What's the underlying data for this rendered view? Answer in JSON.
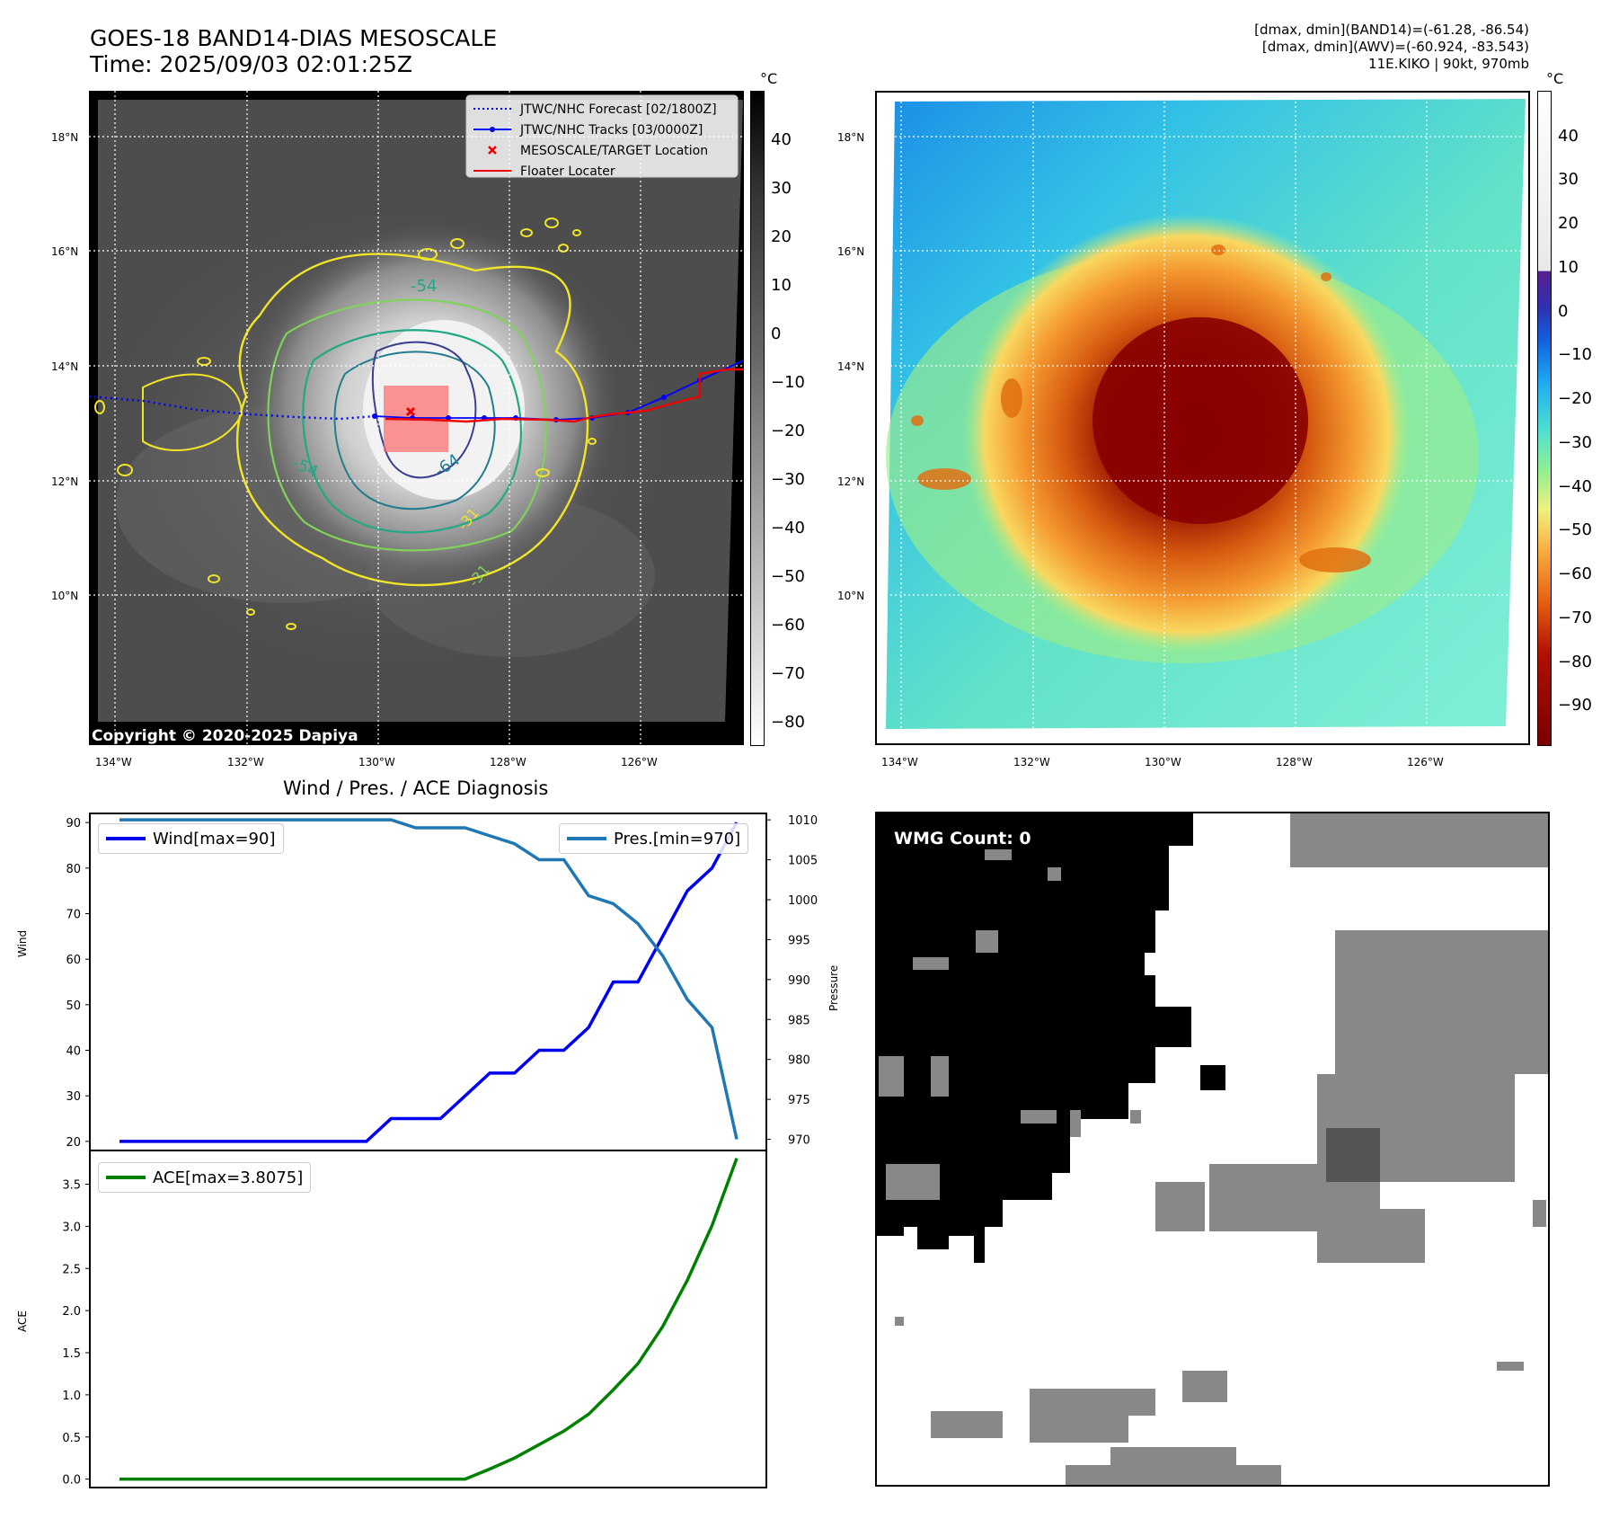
{
  "header": {
    "title_line1": "GOES-18 BAND14-DIAS MESOSCALE",
    "title_line2": "Time: 2025/09/03 02:01:25Z",
    "info_line1": "[dmax, dmin](BAND14)=(-61.28, -86.54)",
    "info_line2": "[dmax, dmin](AWV)=(-60.924, -83.543)",
    "info_line3": "11E.KIKO | 90kt, 970mb"
  },
  "map": {
    "lat_labels": [
      "18°N",
      "16°N",
      "14°N",
      "12°N",
      "10°N"
    ],
    "lon_labels": [
      "134°W",
      "132°W",
      "130°W",
      "128°W",
      "126°W"
    ],
    "copyright": "Copyright © 2020-2025 Dapiya",
    "legend": {
      "forecast": "JTWC/NHC Forecast [02/1800Z]",
      "tracks": "JTWC/NHC Tracks [03/0000Z]",
      "target": "MESOSCALE/TARGET Location",
      "floater": "Floater Locater"
    },
    "contour_labels": [
      "-54",
      "-54",
      "-64",
      "-31",
      "-31"
    ],
    "colorbar_unit": "°C",
    "colorbar_ticks": [
      "40",
      "30",
      "20",
      "10",
      "0",
      "−10",
      "−20",
      "−30",
      "−40",
      "−50",
      "−60",
      "−70",
      "−80"
    ]
  },
  "awv": {
    "lat_labels": [
      "18°N",
      "16°N",
      "14°N",
      "12°N",
      "10°N"
    ],
    "lon_labels": [
      "134°W",
      "132°W",
      "130°W",
      "128°W",
      "126°W"
    ],
    "colorbar_unit": "°C",
    "colorbar_ticks": [
      "40",
      "30",
      "20",
      "10",
      "0",
      "−10",
      "−20",
      "−30",
      "−40",
      "−50",
      "−60",
      "−70",
      "−80",
      "−90"
    ]
  },
  "wmg": {
    "count_label": "WMG Count: 0"
  },
  "colors": {
    "wind": "#0000ee",
    "pressure": "#1f77b4",
    "ace": "#008000",
    "track": "#0000ff",
    "floater": "#ee0000"
  },
  "chart_data": [
    {
      "type": "line",
      "title": "Wind / Pres. / ACE Diagnosis",
      "xlabel": "",
      "ylabel": "Wind",
      "y2label": "Pressure",
      "ylim": [
        18,
        92
      ],
      "y2lim": [
        968.6,
        1010.8
      ],
      "yticks": [
        20,
        30,
        40,
        50,
        60,
        70,
        80,
        90
      ],
      "y2ticks": [
        970,
        975,
        980,
        985,
        990,
        995,
        1000,
        1005,
        1010
      ],
      "x": [
        0,
        1,
        2,
        3,
        4,
        5,
        6,
        7,
        8,
        9,
        10,
        11,
        12,
        13,
        14,
        15,
        16,
        17,
        18,
        19,
        20,
        21,
        22,
        23,
        24,
        25
      ],
      "series": [
        {
          "name": "Wind[max=90]",
          "axis": "left",
          "values": [
            20,
            20,
            20,
            20,
            20,
            20,
            20,
            20,
            20,
            20,
            20,
            25,
            25,
            25,
            30,
            35,
            35,
            40,
            40,
            45,
            55,
            55,
            65,
            75,
            80,
            90
          ]
        },
        {
          "name": "Pres.[min=970]",
          "axis": "right",
          "values": [
            1010,
            1010,
            1010,
            1010,
            1010,
            1010,
            1010,
            1010,
            1010,
            1010,
            1010,
            1010,
            1009,
            1009,
            1009,
            1008,
            1007,
            1005,
            1005,
            1000.5,
            999.5,
            997,
            993,
            987.5,
            984,
            970
          ]
        }
      ]
    },
    {
      "type": "line",
      "ylabel": "ACE",
      "ylim": [
        -0.1,
        3.9
      ],
      "yticks": [
        0.0,
        0.5,
        1.0,
        1.5,
        2.0,
        2.5,
        3.0,
        3.5
      ],
      "x": [
        0,
        1,
        2,
        3,
        4,
        5,
        6,
        7,
        8,
        9,
        10,
        11,
        12,
        13,
        14,
        15,
        16,
        17,
        18,
        19,
        20,
        21,
        22,
        23,
        24,
        25
      ],
      "series": [
        {
          "name": "ACE[max=3.8075]",
          "values": [
            0,
            0,
            0,
            0,
            0,
            0,
            0,
            0,
            0,
            0,
            0,
            0,
            0,
            0,
            0,
            0.12,
            0.25,
            0.41,
            0.57,
            0.77,
            1.06,
            1.37,
            1.81,
            2.36,
            3.01,
            3.8075
          ]
        }
      ]
    }
  ]
}
